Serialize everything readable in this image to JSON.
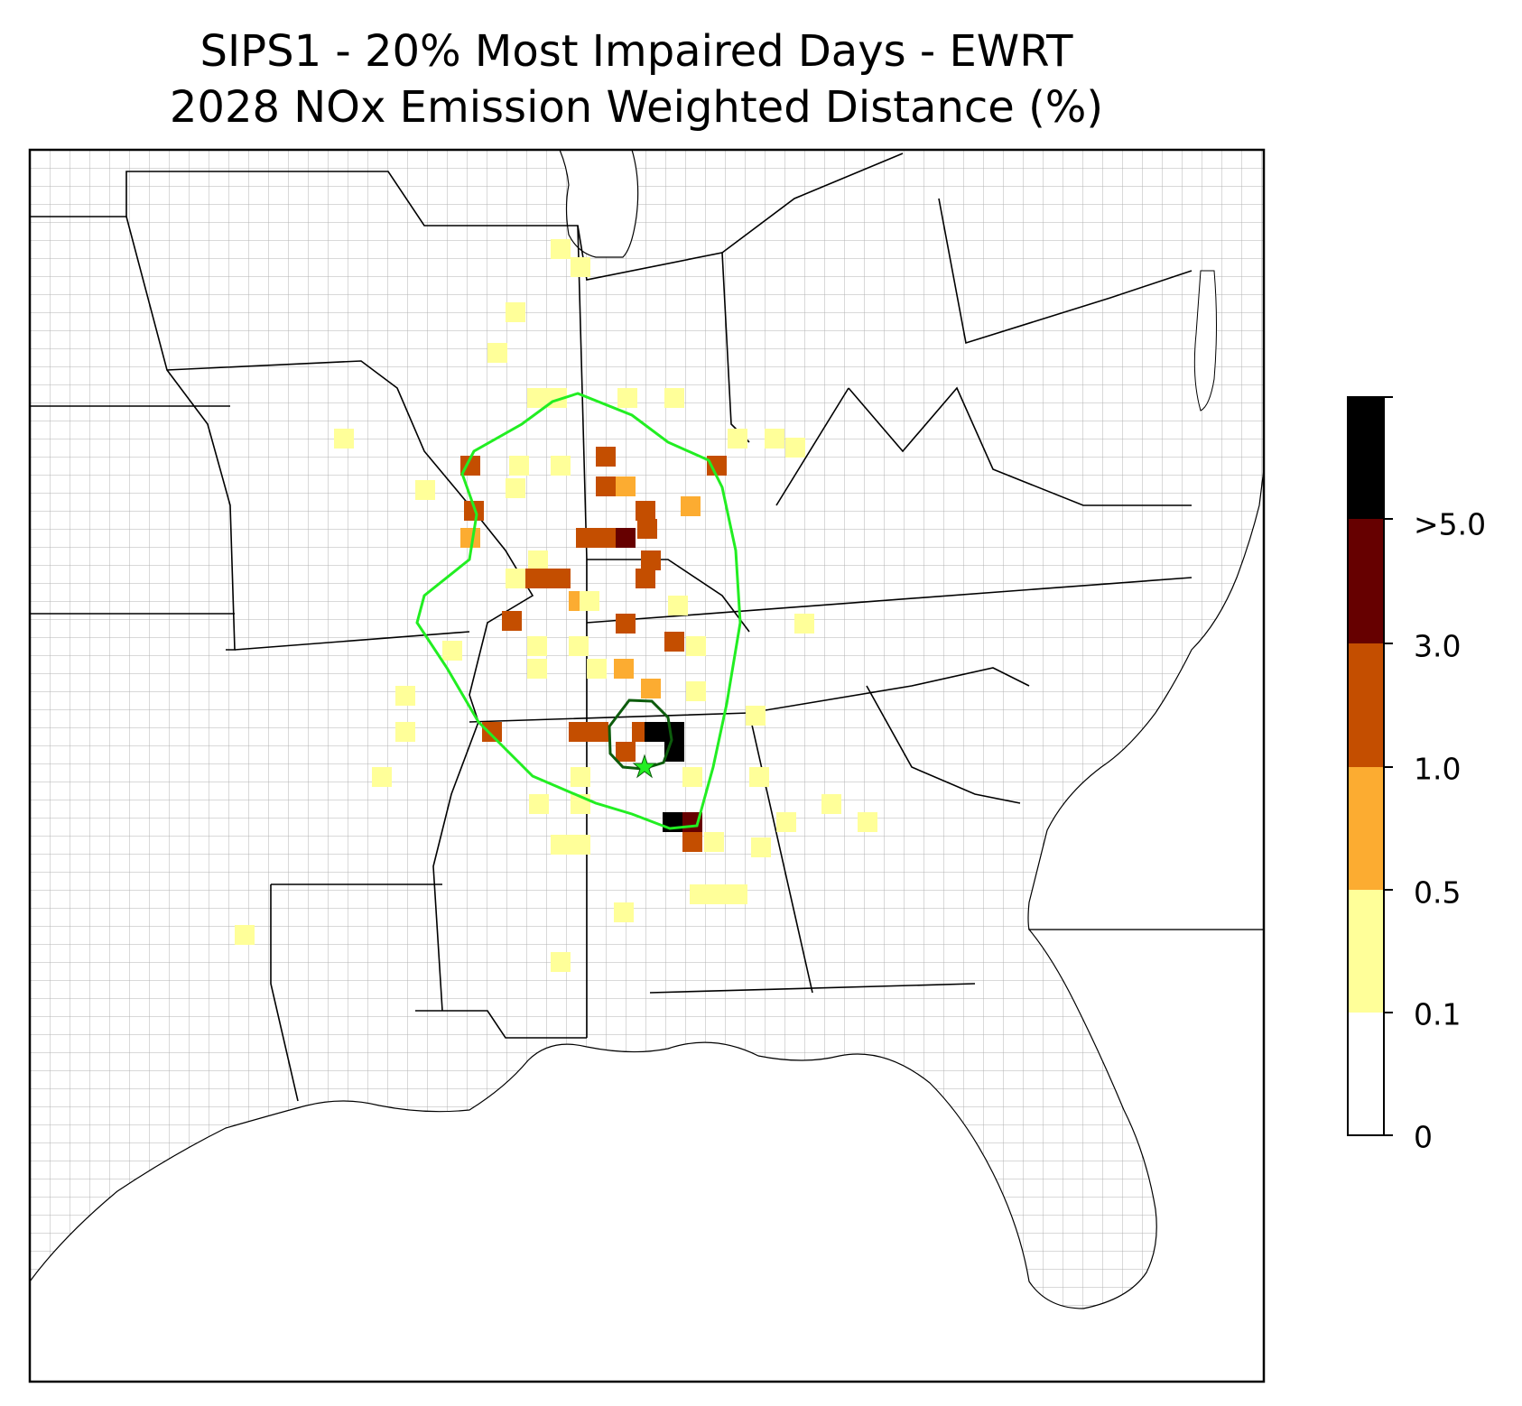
{
  "title": {
    "line1": "SIPS1 - 20% Most Impaired Days - EWRT",
    "line2": "2028 NOx Emission Weighted Distance (%)"
  },
  "colorbar": {
    "labels": [
      ">5.0",
      "3.0",
      "1.0",
      "0.5",
      "0.1",
      "0"
    ],
    "colors": [
      "#000000",
      "#660000",
      "#c44e00",
      "#fcac31",
      "#ffff99",
      "#ffffff"
    ]
  },
  "map_style": {
    "county_line_color": "#a6a6a6",
    "state_line_color": "#000000",
    "aoi_outline_color": "#22ee22",
    "source_outline_color": "#0d5c0d",
    "source_marker": "star"
  },
  "grid_cells": {
    "legend": "value bins: 1 = 0.1-0.5, 2 = 0.5-1.0, 3 = 1.0-3.0, 4 = 3.0-5.0, 5 = >5.0"
  }
}
